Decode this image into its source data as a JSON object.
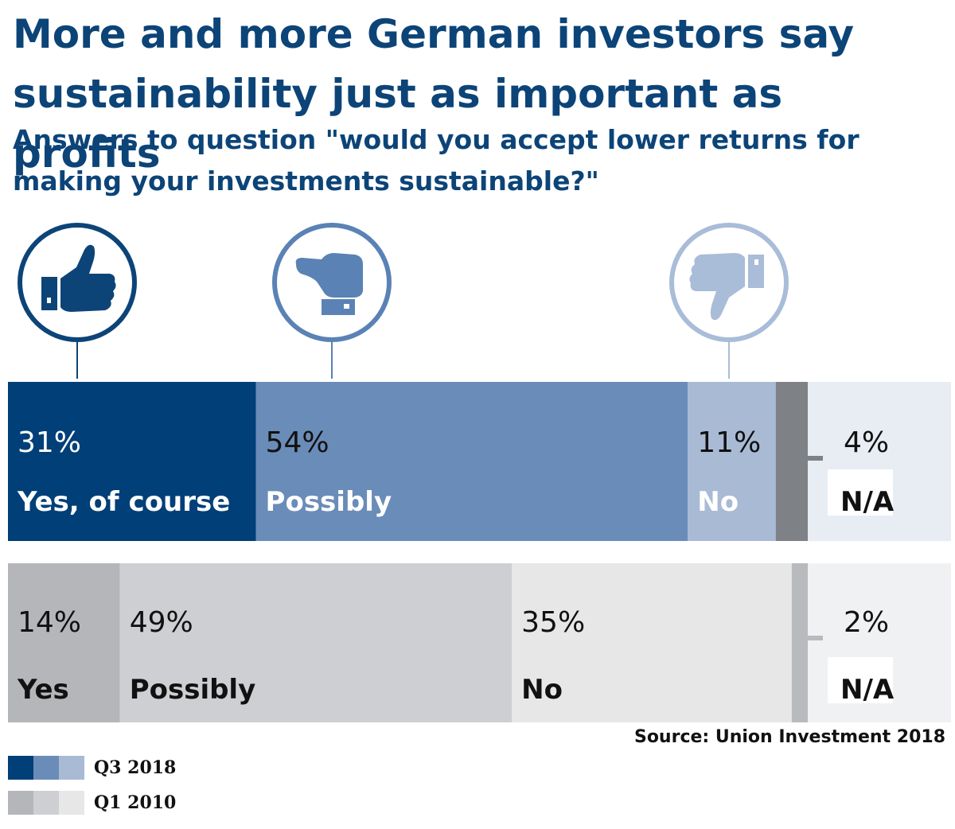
{
  "title_line1": "More and more German investors say",
  "title_line2": "sustainability just as important as profits",
  "subtitle_line1": "Answers to question \"would you accept lower returns for",
  "subtitle_line2": "making your investments sustainable?\"",
  "source": "Source: Union Investment 2018",
  "icons": [
    {
      "name": "thumbs-up-icon",
      "color": "#0c4478"
    },
    {
      "name": "thumbs-sideways-icon",
      "color": "#5a82b4"
    },
    {
      "name": "thumbs-down-icon",
      "color": "#a9bcd8"
    }
  ],
  "colors": {
    "q3_yes": "#003f77",
    "q3_possibly": "#6a8cb8",
    "q3_no": "#a9bad5",
    "q3_na": "#7e8287",
    "q3_band": "#e8edf4",
    "q1_yes": "#b4b6b9",
    "q1_possibly": "#cdcfd2",
    "q1_no": "#e7e7e8",
    "q1_na": "#b8babd",
    "q1_band": "#f0f1f3"
  },
  "chart_data": {
    "type": "bar",
    "orientation": "horizontal-stacked-100",
    "title": "More and more German investors say sustainability just as important as profits",
    "subtitle": "Answers to question \"would you accept lower returns for making your investments sustainable?\"",
    "series": [
      {
        "name": "Q3 2018",
        "values": [
          {
            "label": "Yes, of course",
            "value": 31,
            "display": "31%"
          },
          {
            "label": "Possibly",
            "value": 54,
            "display": "54%"
          },
          {
            "label": "No",
            "value": 11,
            "display": "11%"
          },
          {
            "label": "N/A",
            "value": 4,
            "display": "4%"
          }
        ]
      },
      {
        "name": "Q1 2010",
        "values": [
          {
            "label": "Yes",
            "value": 14,
            "display": "14%"
          },
          {
            "label": "Possibly",
            "value": 49,
            "display": "49%"
          },
          {
            "label": "No",
            "value": 35,
            "display": "35%"
          },
          {
            "label": "N/A",
            "value": 2,
            "display": "2%"
          }
        ]
      }
    ],
    "legend": {
      "placement": "bottom-left",
      "entries": [
        {
          "label": "Q3 2018",
          "swatches": [
            "#003f77",
            "#6a8cb8",
            "#a9bad5"
          ]
        },
        {
          "label": "Q1 2010",
          "swatches": [
            "#b4b6b9",
            "#cdcfd2",
            "#e7e7e8"
          ]
        }
      ]
    }
  }
}
